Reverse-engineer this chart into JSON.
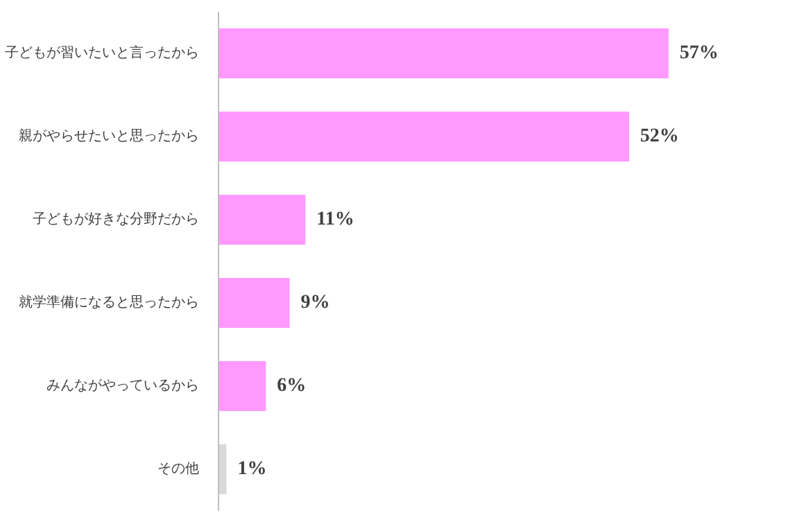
{
  "chart_data": {
    "type": "bar",
    "orientation": "horizontal",
    "categories": [
      "子どもが習いたいと言ったから",
      "親がやらせたいと思ったから",
      "子どもが好きな分野だから",
      "就学準備になると思ったから",
      "みんながやっているから",
      "その他"
    ],
    "values": [
      57,
      52,
      11,
      9,
      6,
      1
    ],
    "colors": [
      "#ff99ff",
      "#ff99ff",
      "#ff99ff",
      "#ff99ff",
      "#ff99ff",
      "#d9d9d9"
    ],
    "value_labels": [
      "57%",
      "52%",
      "11%",
      "9%",
      "6%",
      "1%"
    ],
    "grid": false
  }
}
